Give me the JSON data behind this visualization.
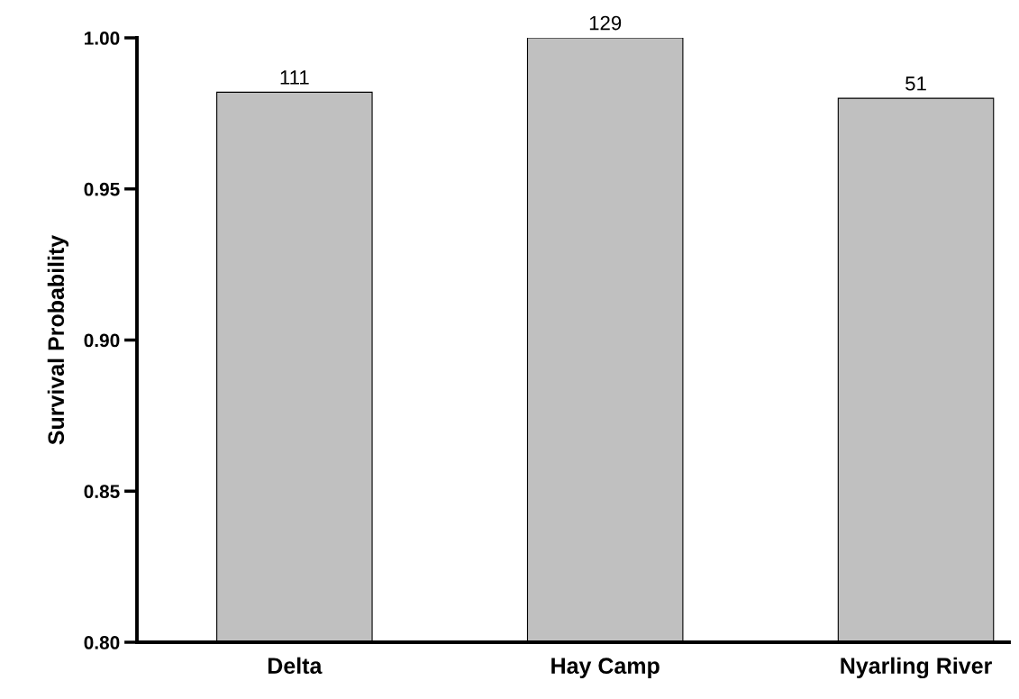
{
  "chart_data": {
    "type": "bar",
    "ylabel": "Survival Probability",
    "categories": [
      "Delta",
      "Hay Camp",
      "Nyarling River"
    ],
    "values": [
      0.982,
      1.0,
      0.98
    ],
    "color": "#c0c0c0",
    "annotations": [
      {
        "text": "111",
        "x": "Delta",
        "y": 0.982
      },
      {
        "text": "129",
        "x": "Hay Camp",
        "y": 1.0
      },
      {
        "text": "51",
        "x": "Nyarling River",
        "y": 0.98
      }
    ],
    "ylim": [
      0.8,
      1.0
    ],
    "yticks": [
      {
        "value": 0.8,
        "label": "0.80"
      },
      {
        "value": 0.85,
        "label": "0.85"
      },
      {
        "value": 0.9,
        "label": "0.90"
      },
      {
        "value": 0.95,
        "label": "0.95"
      },
      {
        "value": 1.0,
        "label": "1.00"
      }
    ],
    "grid": false,
    "legend": false
  }
}
